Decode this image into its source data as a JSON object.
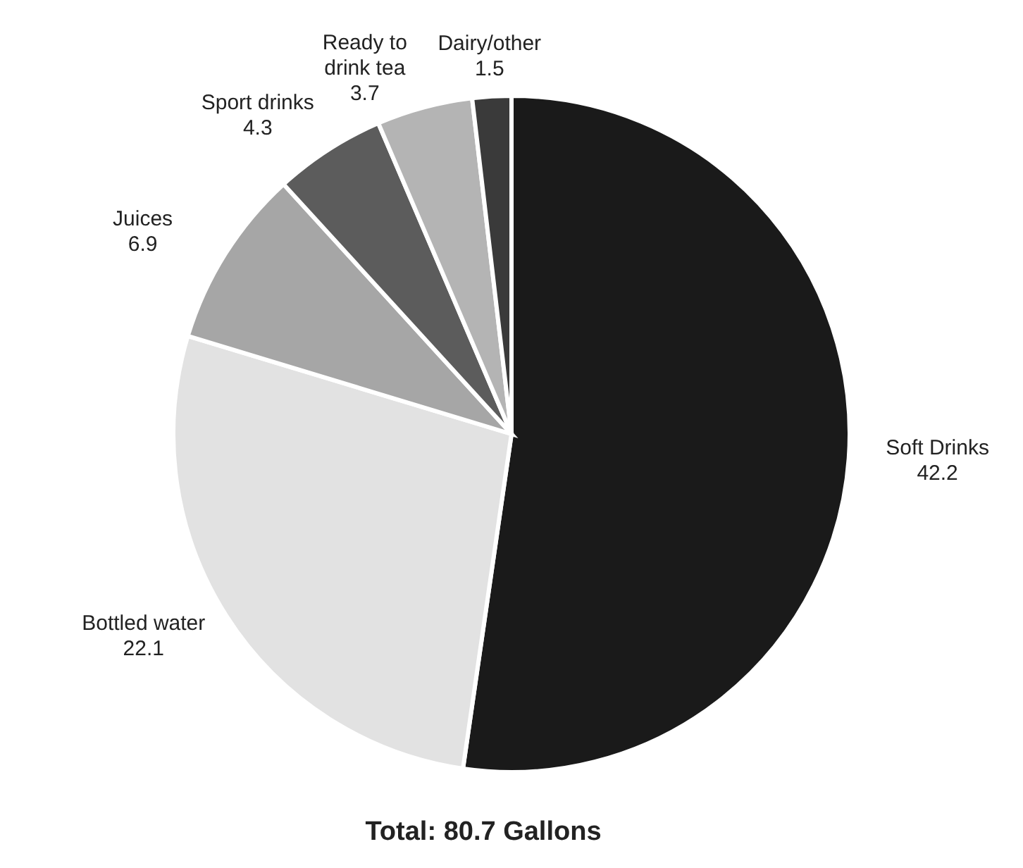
{
  "chart_data": {
    "type": "pie",
    "title": "Total: 80.7 Gallons",
    "categories": [
      "Soft Drinks",
      "Bottled water",
      "Juices",
      "Sport drinks",
      "Ready to drink tea",
      "Dairy/other"
    ],
    "values": [
      42.2,
      22.1,
      6.9,
      4.3,
      3.7,
      1.5
    ],
    "colors": [
      "#1a1a1a",
      "#e2e2e2",
      "#a6a6a6",
      "#5c5c5c",
      "#b4b4b4",
      "#3a3a3a"
    ],
    "data_labels": true
  }
}
